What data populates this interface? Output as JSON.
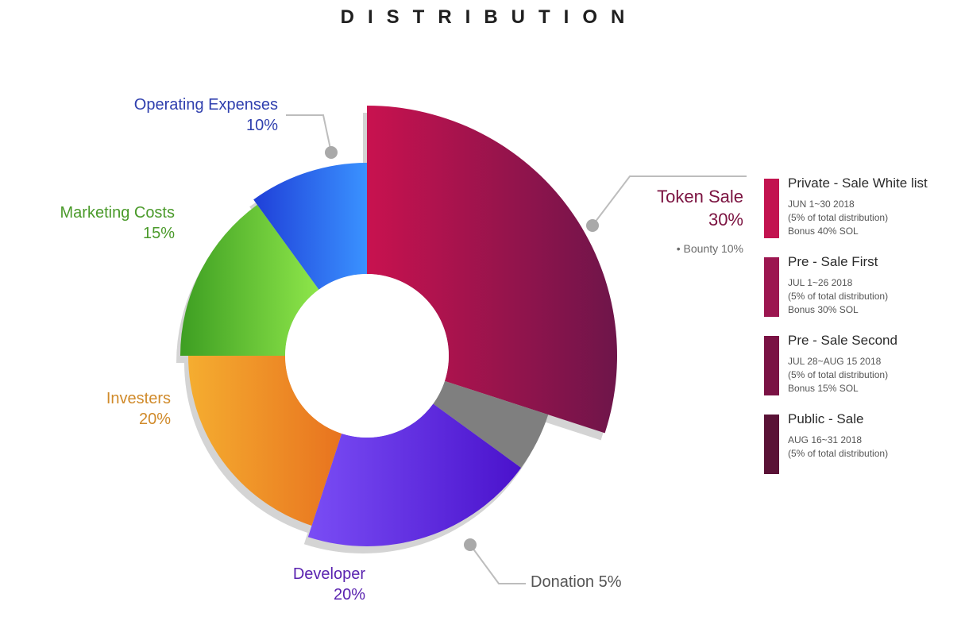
{
  "title": "DISTRIBUTION",
  "colors": {
    "token_sale": "#8a1450",
    "donation": "#7f7f7f",
    "developer": "#5b2fe0",
    "investers": "#f0932a",
    "marketing": "#6ccf3c",
    "operating": "#2a62e8",
    "shadow": "#d4d4d4"
  },
  "chart_data": {
    "type": "pie",
    "title": "DISTRIBUTION",
    "slices": [
      {
        "name": "Token Sale",
        "value": 30,
        "label_value": "30%"
      },
      {
        "name": "Donation",
        "value": 5,
        "label_value": "5%"
      },
      {
        "name": "Developer",
        "value": 20,
        "label_value": "20%"
      },
      {
        "name": "Investers",
        "value": 20,
        "label_value": "20%"
      },
      {
        "name": "Marketing Costs",
        "value": 15,
        "label_value": "15%"
      },
      {
        "name": "Operating Expenses",
        "value": 10,
        "label_value": "10%"
      }
    ],
    "annotations": [
      "• Bounty 10%"
    ]
  },
  "labels": {
    "operating": {
      "name": "Operating Expenses",
      "pct": "10%"
    },
    "marketing": {
      "name": "Marketing Costs",
      "pct": "15%"
    },
    "investers": {
      "name": "Investers",
      "pct": "20%"
    },
    "developer": {
      "name": "Developer",
      "pct": "20%"
    },
    "donation": {
      "text": "Donation 5%"
    },
    "token_sale": {
      "name": "Token Sale",
      "pct": "30%"
    },
    "bounty": "• Bounty 10%"
  },
  "sale_stages": [
    {
      "name": "Private - Sale White list",
      "dates": "JUN 1~30 2018",
      "share": "(5% of total distribution)",
      "bonus": "Bonus 40% SOL",
      "color": "#c2134f"
    },
    {
      "name": "Pre - Sale First",
      "dates": "JUL 1~26 2018",
      "share": "(5% of total distribution)",
      "bonus": "Bonus 30% SOL",
      "color": "#9c1650"
    },
    {
      "name": "Pre - Sale Second",
      "dates": "JUL 28~AUG 15 2018",
      "share": "(5% of total distribution)",
      "bonus": "Bonus 15% SOL",
      "color": "#7a1244"
    },
    {
      "name": "Public - Sale",
      "dates": "AUG 16~31 2018",
      "share": "(5% of total distribution)",
      "bonus": "",
      "color": "#5a1236"
    }
  ]
}
